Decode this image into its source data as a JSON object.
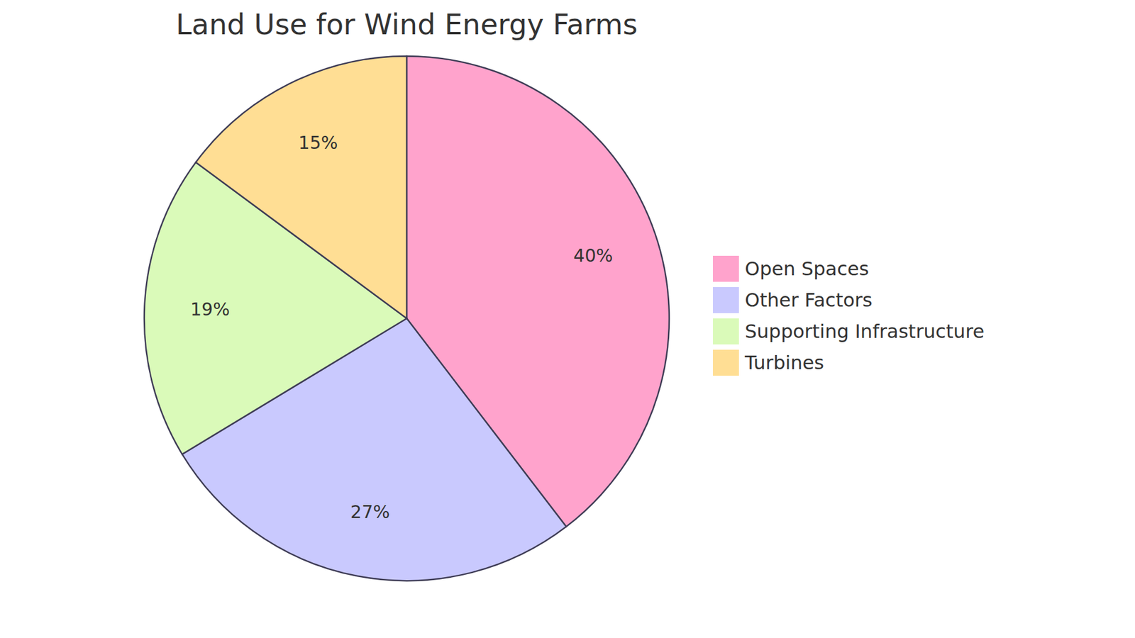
{
  "chart_data": {
    "type": "pie",
    "title": "Land Use for Wind Energy Farms",
    "categories": [
      "Open Spaces",
      "Other Factors",
      "Supporting Infrastructure",
      "Turbines"
    ],
    "values": [
      40,
      27,
      19,
      15
    ],
    "value_labels": [
      "40%",
      "27%",
      "19%",
      "15%"
    ],
    "colors": [
      "#ffa3cc",
      "#c9c9fe",
      "#dafab9",
      "#ffde94"
    ],
    "data_labels": true,
    "legend": "right"
  }
}
